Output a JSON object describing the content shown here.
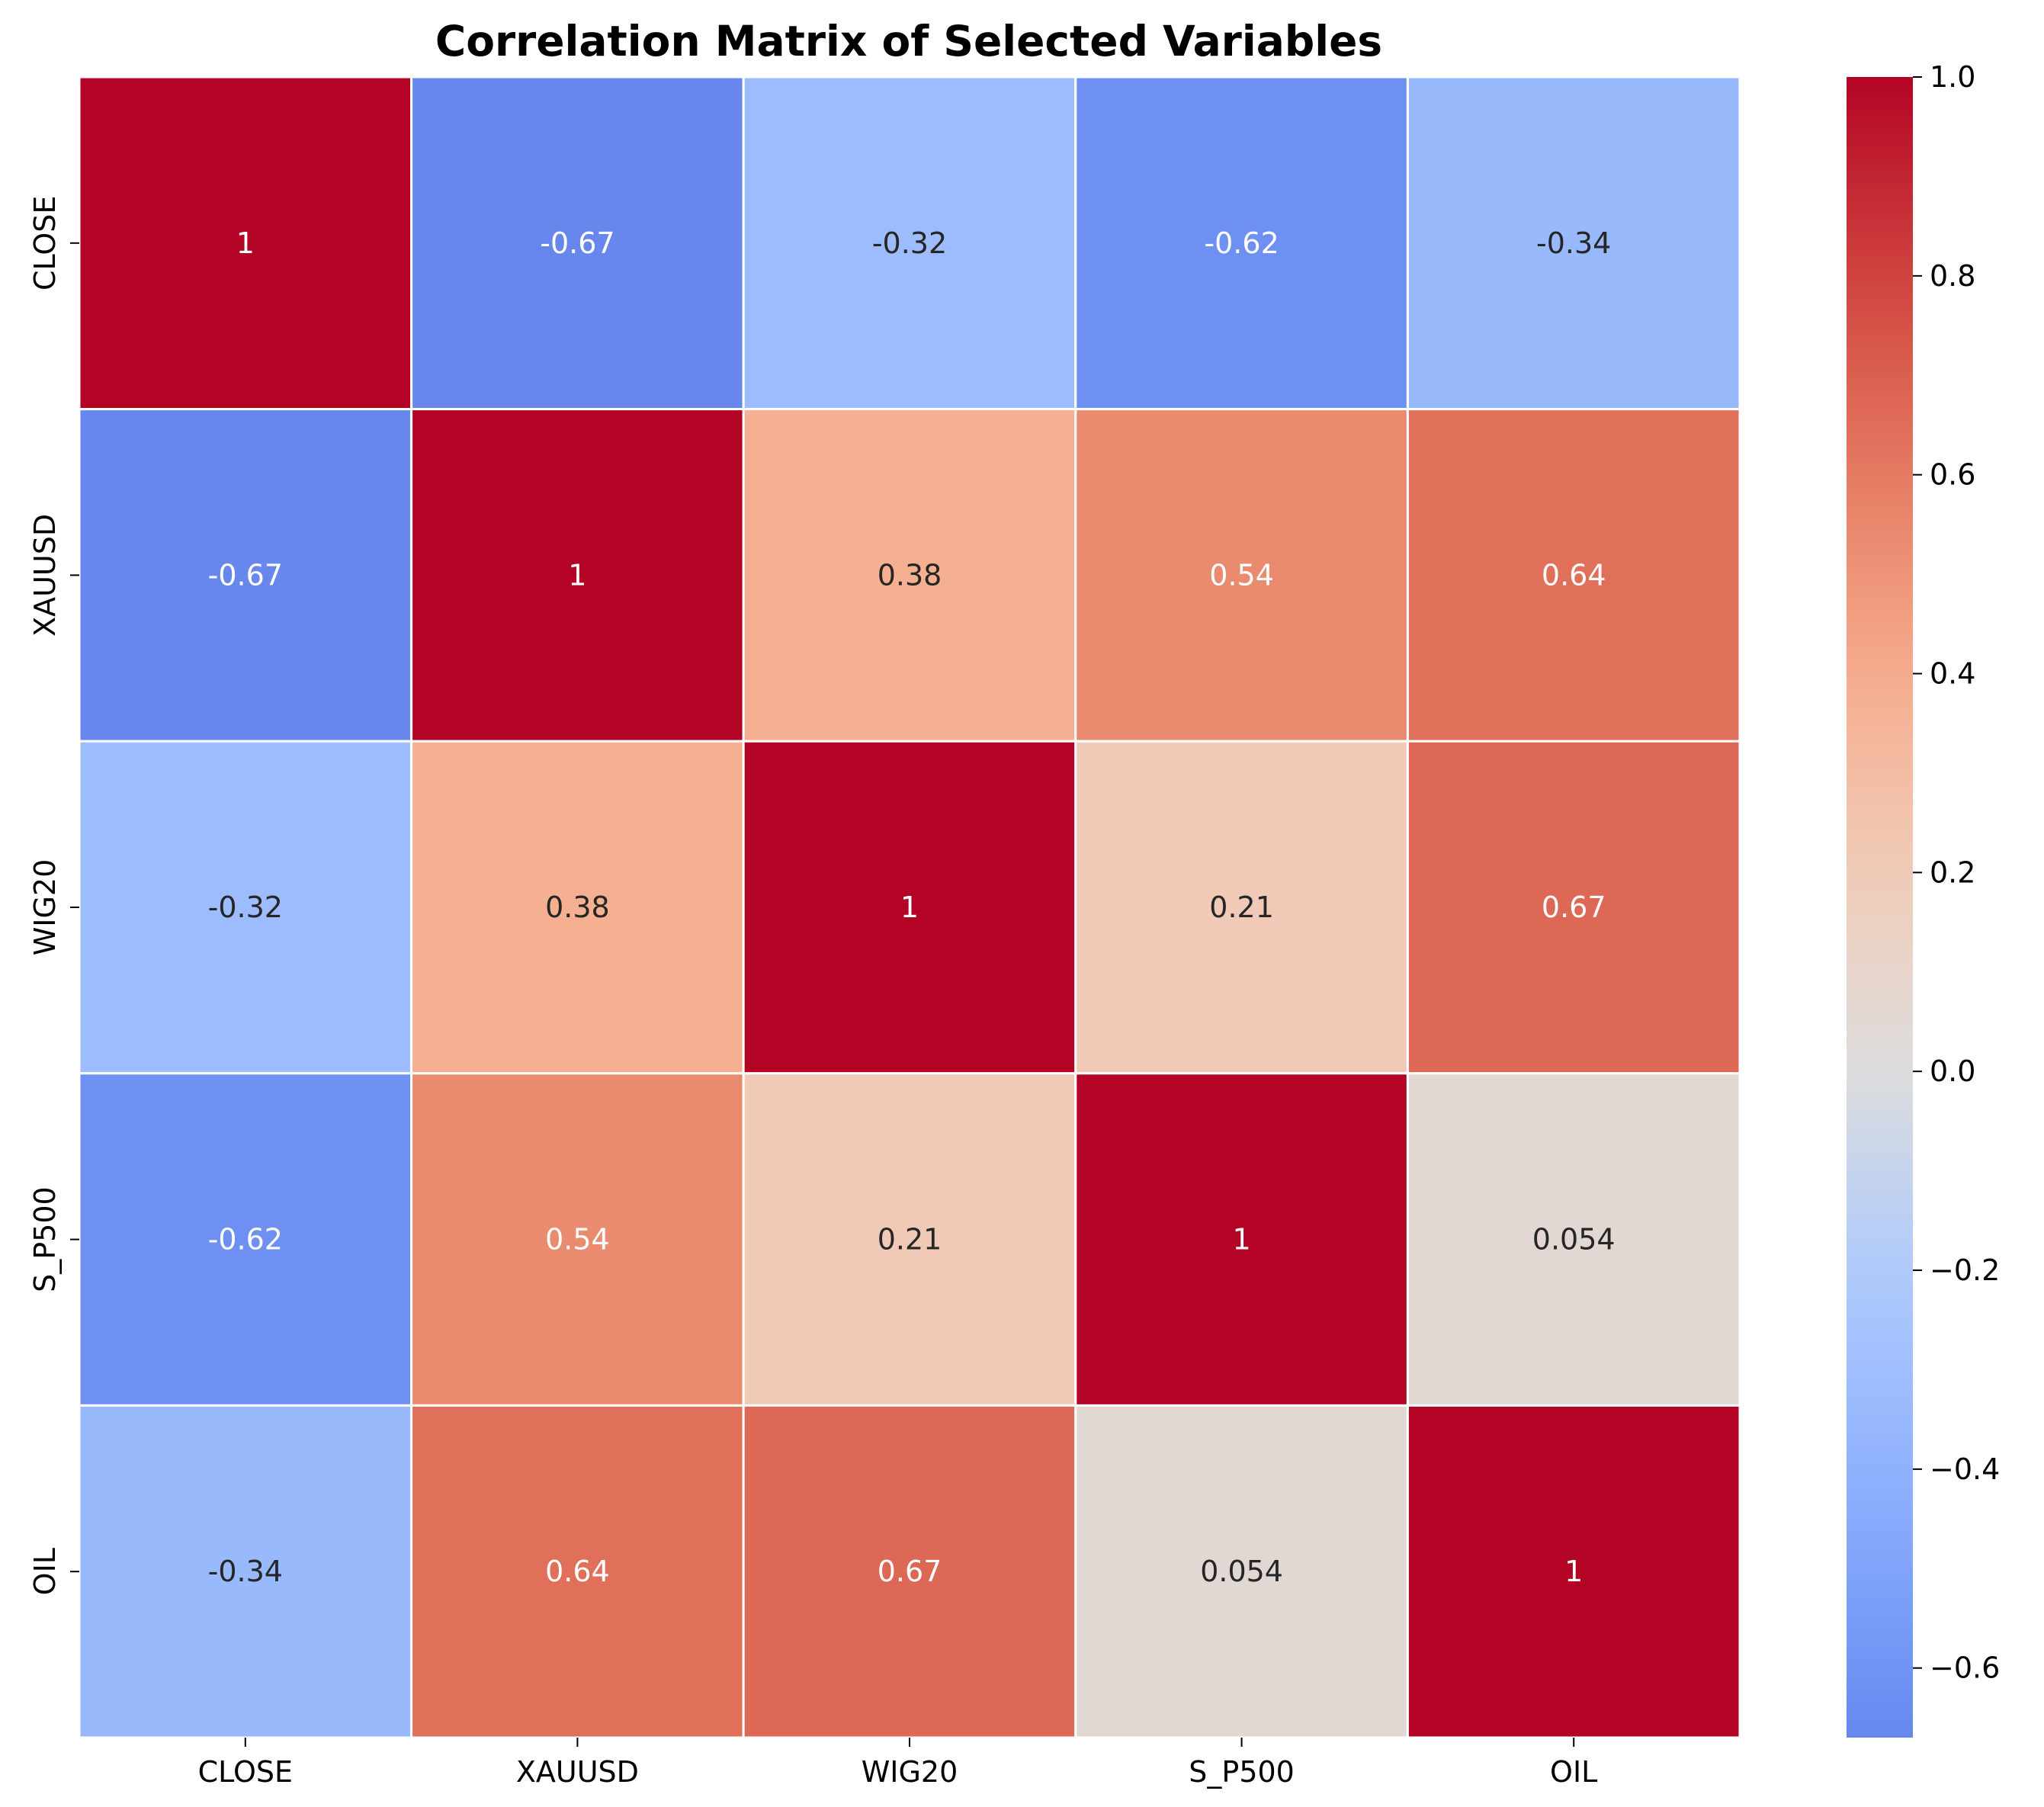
{
  "chart_data": {
    "type": "heatmap",
    "title": "Correlation Matrix of Selected Variables",
    "xlabel": "",
    "ylabel": "",
    "variables": [
      "CLOSE",
      "XAUUSD",
      "WIG20",
      "S_P500",
      "OIL"
    ],
    "values": [
      [
        1,
        -0.67,
        -0.32,
        -0.62,
        -0.34
      ],
      [
        -0.67,
        1,
        0.38,
        0.54,
        0.64
      ],
      [
        -0.32,
        0.38,
        1,
        0.21,
        0.67
      ],
      [
        -0.62,
        0.54,
        0.21,
        1,
        0.054
      ],
      [
        -0.34,
        0.64,
        0.67,
        0.054,
        1
      ]
    ],
    "cell_labels": [
      [
        "1",
        "-0.67",
        "-0.32",
        "-0.62",
        "-0.34"
      ],
      [
        "-0.67",
        "1",
        "0.38",
        "0.54",
        "0.64"
      ],
      [
        "-0.32",
        "0.38",
        "1",
        "0.21",
        "0.67"
      ],
      [
        "-0.62",
        "0.54",
        "0.21",
        "1",
        "0.054"
      ],
      [
        "-0.34",
        "0.64",
        "0.67",
        "0.054",
        "1"
      ]
    ],
    "colormap": "coolwarm",
    "center": 0,
    "vmin": -0.67,
    "vmax": 1.0,
    "colorbar": {
      "ticks": [
        1.0,
        0.8,
        0.6,
        0.4,
        0.2,
        0.0,
        -0.2,
        -0.4,
        -0.6
      ],
      "tick_labels": [
        "1.0",
        "0.8",
        "0.6",
        "0.4",
        "0.2",
        "0.0",
        "−0.2",
        "−0.4",
        "−0.6"
      ],
      "placement": "right"
    },
    "grid": false
  },
  "colors": {
    "cell_border": "#ffffff",
    "text_light": "#ffffff",
    "text_dark": "#262626"
  }
}
